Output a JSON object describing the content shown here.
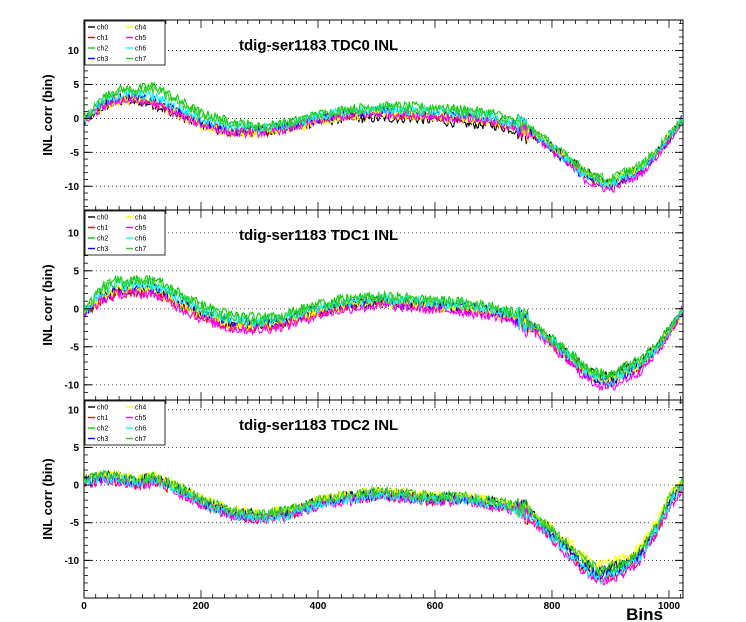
{
  "chart_data": {
    "type": "line",
    "xlabel": "Bins",
    "xlim": [
      0,
      1024
    ],
    "x_ticks": [
      "0",
      "200",
      "400",
      "600",
      "800",
      "1000"
    ],
    "series_colors": {
      "ch0": "#000000",
      "ch1": "#ff0000",
      "ch2": "#00cc00",
      "ch3": "#0000ff",
      "ch4": "#ffff00",
      "ch5": "#ff00ff",
      "ch6": "#00ffff",
      "ch7": "#33cc33"
    },
    "panels": [
      {
        "title": "tdig-ser1183 TDC0 INL",
        "ylabel": "INL corr (bin)",
        "ylim": [
          -13.5,
          14.5
        ],
        "y_ticks": [
          "-10",
          "-5",
          "0",
          "5",
          "10"
        ],
        "legend": [
          "ch0",
          "ch1",
          "ch2",
          "ch3",
          "ch4",
          "ch5",
          "ch6",
          "ch7"
        ],
        "x": [
          0,
          30,
          60,
          90,
          120,
          160,
          200,
          250,
          300,
          350,
          400,
          450,
          500,
          550,
          600,
          650,
          700,
          750,
          780,
          820,
          860,
          880,
          900,
          920,
          950,
          980,
          1000,
          1024
        ],
        "series": [
          {
            "name": "ch0",
            "values": [
              -0.5,
              1.5,
              2.5,
              2.5,
              2,
              0.5,
              -1,
              -2,
              -2,
              -1.5,
              -0.5,
              0,
              0,
              0,
              -0.3,
              -0.8,
              -1,
              -2,
              -3,
              -5.5,
              -8,
              -9,
              -9.5,
              -8.5,
              -7.5,
              -5,
              -3,
              0
            ]
          },
          {
            "name": "ch1",
            "values": [
              -0.5,
              1.8,
              2.8,
              2.8,
              2.3,
              0.8,
              -0.8,
              -2,
              -2,
              -1.4,
              -0.2,
              0.5,
              0.8,
              0.6,
              0.3,
              0,
              -0.5,
              -1.5,
              -3,
              -5.8,
              -8.5,
              -9.5,
              -10,
              -9,
              -7.8,
              -5.3,
              -3,
              0
            ]
          },
          {
            "name": "ch2",
            "values": [
              -0.3,
              3,
              4.2,
              4.3,
              4.8,
              2.8,
              0.8,
              -0.5,
              -1.2,
              -0.6,
              0.6,
              1.4,
              1.8,
              1.8,
              1.6,
              1.3,
              0.8,
              -0.8,
              -2.6,
              -5.3,
              -8,
              -8.8,
              -9.2,
              -8.2,
              -7.2,
              -4.8,
              -2.5,
              0
            ]
          },
          {
            "name": "ch3",
            "values": [
              -0.4,
              2,
              3,
              3,
              2.6,
              1,
              -0.6,
              -1.8,
              -1.9,
              -1.3,
              -0.1,
              0.6,
              0.9,
              0.8,
              0.5,
              0.2,
              -0.3,
              -1.4,
              -3,
              -6,
              -8.8,
              -9.6,
              -10,
              -9,
              -7.8,
              -5.2,
              -3,
              0
            ]
          },
          {
            "name": "ch4",
            "values": [
              -0.5,
              1.6,
              2.6,
              2.6,
              2.1,
              0.6,
              -1,
              -2.2,
              -2.2,
              -1.6,
              -0.4,
              0.3,
              0.6,
              0.5,
              0.2,
              -0.2,
              -0.6,
              -1.6,
              -3.1,
              -5.8,
              -8.3,
              -9.2,
              -9.6,
              -8.6,
              -7.5,
              -5,
              -2.8,
              0
            ]
          },
          {
            "name": "ch5",
            "values": [
              -0.6,
              1.7,
              2.7,
              2.6,
              2.1,
              0.6,
              -0.9,
              -2.1,
              -2.1,
              -1.5,
              -0.3,
              0.4,
              0.7,
              0.6,
              0.3,
              -0.1,
              -0.5,
              -1.6,
              -3.2,
              -6.2,
              -9.2,
              -10,
              -10.5,
              -9.5,
              -8.3,
              -5.5,
              -3.2,
              0
            ]
          },
          {
            "name": "ch6",
            "values": [
              -0.3,
              2.3,
              3.4,
              3.5,
              3.2,
              1.6,
              0,
              -1.2,
              -1.5,
              -0.9,
              0.3,
              1,
              1.3,
              1.2,
              1,
              0.6,
              0.1,
              -1.1,
              -2.8,
              -5.7,
              -8.6,
              -9.4,
              -9.8,
              -8.8,
              -7.6,
              -5.1,
              -2.8,
              0
            ]
          },
          {
            "name": "ch7",
            "values": [
              -0.2,
              2.7,
              3.9,
              4,
              4.3,
              2.4,
              0.6,
              -0.7,
              -1.3,
              -0.7,
              0.5,
              1.2,
              1.6,
              1.5,
              1.3,
              1,
              0.5,
              -0.9,
              -2.5,
              -5.2,
              -7.9,
              -8.6,
              -9,
              -8,
              -7,
              -4.7,
              -2.4,
              0
            ]
          }
        ]
      },
      {
        "title": "tdig-ser1183 TDC1 INL",
        "ylabel": "INL corr (bin)",
        "ylim": [
          -12,
          13
        ],
        "y_ticks": [
          "-10",
          "-5",
          "0",
          "5",
          "10"
        ],
        "legend": [
          "ch0",
          "ch1",
          "ch2",
          "ch3",
          "ch4",
          "ch5",
          "ch6",
          "ch7"
        ],
        "x": [
          0,
          30,
          60,
          90,
          120,
          160,
          200,
          250,
          300,
          350,
          400,
          450,
          500,
          550,
          600,
          650,
          700,
          750,
          780,
          820,
          860,
          880,
          900,
          920,
          950,
          980,
          1000,
          1024
        ],
        "series": [
          {
            "name": "ch0",
            "values": [
              -0.5,
              1.5,
              2.5,
              2.5,
              2.5,
              0.8,
              -0.8,
              -2,
              -2.2,
              -1.5,
              -0.3,
              0.5,
              1,
              0.8,
              0.5,
              0.2,
              -0.3,
              -1.5,
              -3,
              -5.5,
              -8,
              -8.8,
              -9,
              -8,
              -7,
              -5,
              -3,
              0
            ]
          },
          {
            "name": "ch1",
            "values": [
              -0.6,
              1.2,
              2.2,
              2.2,
              2.2,
              0.5,
              -1.1,
              -2.3,
              -2.5,
              -1.8,
              -0.5,
              0.3,
              0.7,
              0.5,
              0.2,
              -0.1,
              -0.6,
              -1.8,
              -3.3,
              -6,
              -8.5,
              -9.3,
              -9.8,
              -8.8,
              -7.6,
              -5.4,
              -3.2,
              0
            ]
          },
          {
            "name": "ch2",
            "values": [
              -0.2,
              2.8,
              3.8,
              3.8,
              3.9,
              2.2,
              0.5,
              -0.8,
              -1.2,
              -0.6,
              0.6,
              1.3,
              1.6,
              1.4,
              1.1,
              0.8,
              0.3,
              -1,
              -2.7,
              -5.2,
              -7.7,
              -8.4,
              -8.8,
              -7.8,
              -6.8,
              -4.7,
              -2.6,
              0
            ]
          },
          {
            "name": "ch3",
            "values": [
              -0.5,
              1.6,
              2.6,
              2.6,
              2.6,
              0.9,
              -0.7,
              -1.9,
              -2.1,
              -1.4,
              -0.2,
              0.5,
              0.9,
              0.7,
              0.4,
              0.1,
              -0.4,
              -1.6,
              -3.2,
              -6,
              -8.6,
              -9.4,
              -9.8,
              -8.8,
              -7.6,
              -5.3,
              -3.1,
              0
            ]
          },
          {
            "name": "ch4",
            "values": [
              -0.5,
              1.5,
              2.5,
              2.4,
              2.4,
              0.7,
              -0.9,
              -2.1,
              -2.3,
              -1.6,
              -0.4,
              0.4,
              0.8,
              0.6,
              0.3,
              0,
              -0.5,
              -1.7,
              -3.2,
              -5.8,
              -8.3,
              -9.1,
              -9.5,
              -8.5,
              -7.4,
              -5.2,
              -3,
              0
            ]
          },
          {
            "name": "ch5",
            "values": [
              -0.7,
              1.1,
              2,
              2,
              2,
              0.3,
              -1.3,
              -2.6,
              -2.8,
              -2.1,
              -0.8,
              0,
              0.4,
              0.2,
              -0.1,
              -0.4,
              -0.9,
              -2,
              -3.5,
              -6.4,
              -9.2,
              -10,
              -10.5,
              -9.5,
              -8.2,
              -5.8,
              -3.4,
              0
            ]
          },
          {
            "name": "ch6",
            "values": [
              -0.4,
              2.1,
              3.1,
              3.1,
              3.1,
              1.4,
              -0.2,
              -1.5,
              -1.8,
              -1.1,
              0.1,
              0.8,
              1.2,
              1,
              0.7,
              0.4,
              -0.1,
              -1.4,
              -3,
              -5.8,
              -8.4,
              -9.2,
              -9.6,
              -8.6,
              -7.4,
              -5.2,
              -3,
              0
            ]
          },
          {
            "name": "ch7",
            "values": [
              -0.3,
              2.5,
              3.5,
              3.5,
              3.6,
              1.9,
              0.2,
              -1.1,
              -1.5,
              -0.8,
              0.4,
              1.1,
              1.4,
              1.2,
              0.9,
              0.6,
              0.1,
              -1.2,
              -2.8,
              -5.4,
              -7.9,
              -8.6,
              -9,
              -8,
              -7,
              -4.9,
              -2.8,
              0
            ]
          }
        ]
      },
      {
        "title": "tdig-ser1183 TDC2 INL",
        "ylabel": "INL corr (bin)",
        "ylim": [
          -15,
          11.3
        ],
        "y_ticks": [
          "-10",
          "-5",
          "0",
          "5",
          "10"
        ],
        "legend": [
          "ch0",
          "ch1",
          "ch2",
          "ch3",
          "ch4",
          "ch5",
          "ch6",
          "ch7"
        ],
        "x": [
          0,
          30,
          60,
          90,
          120,
          160,
          200,
          250,
          300,
          350,
          400,
          450,
          500,
          550,
          600,
          650,
          700,
          750,
          780,
          820,
          860,
          880,
          900,
          920,
          950,
          980,
          1000,
          1024
        ],
        "series": [
          {
            "name": "ch0",
            "values": [
              0.5,
              1.2,
              1,
              0.5,
              1,
              -0.3,
              -2,
              -3.5,
              -4,
              -3.5,
              -2.2,
              -1.5,
              -1,
              -1.3,
              -1.7,
              -1.6,
              -2.3,
              -3,
              -4.8,
              -7.5,
              -10.5,
              -11.5,
              -11,
              -10.5,
              -9,
              -5,
              -2,
              0.5
            ]
          },
          {
            "name": "ch1",
            "values": [
              0.2,
              0.8,
              0.5,
              0,
              0.5,
              -0.8,
              -2.5,
              -4,
              -4.5,
              -4,
              -2.6,
              -2,
              -1.4,
              -1.7,
              -2.1,
              -2,
              -2.7,
              -3.5,
              -5.5,
              -8.5,
              -11.5,
              -12.5,
              -12,
              -11.5,
              -10,
              -6,
              -2.8,
              0
            ]
          },
          {
            "name": "ch2",
            "values": [
              0.6,
              1.3,
              1.1,
              0.6,
              1.1,
              -0.2,
              -1.9,
              -3.4,
              -3.9,
              -3.4,
              -2.1,
              -1.4,
              -0.9,
              -1.2,
              -1.6,
              -1.5,
              -2.2,
              -2.9,
              -4.7,
              -7.6,
              -10.6,
              -11.6,
              -11.2,
              -10.7,
              -9.2,
              -5.2,
              -2.1,
              0.4
            ]
          },
          {
            "name": "ch3",
            "values": [
              0.4,
              1,
              0.8,
              0.3,
              0.8,
              -0.5,
              -2.2,
              -3.7,
              -4.2,
              -3.7,
              -2.4,
              -1.7,
              -1.2,
              -1.5,
              -1.9,
              -1.8,
              -2.5,
              -3.2,
              -5,
              -8,
              -11,
              -12,
              -11.6,
              -11,
              -9.5,
              -5.5,
              -2.4,
              0.2
            ]
          },
          {
            "name": "ch4",
            "values": [
              0.7,
              1.4,
              1.2,
              0.7,
              1.2,
              -0.1,
              -1.8,
              -3.3,
              -3.8,
              -3.3,
              -2,
              -1.3,
              -0.8,
              -1.1,
              -1.5,
              -1.4,
              -2.1,
              -2.8,
              -4.5,
              -7,
              -9.8,
              -10.6,
              -10.2,
              -9.8,
              -8.3,
              -4.4,
              -1.6,
              0.8
            ]
          },
          {
            "name": "ch5",
            "values": [
              0.1,
              0.7,
              0.4,
              -0.1,
              0.4,
              -0.9,
              -2.6,
              -4.1,
              -4.6,
              -4.1,
              -2.7,
              -2.1,
              -1.5,
              -1.8,
              -2.2,
              -2.1,
              -2.8,
              -3.6,
              -5.6,
              -8.8,
              -11.8,
              -12.8,
              -12.4,
              -11.8,
              -10.2,
              -6.2,
              -3,
              -0.2
            ]
          },
          {
            "name": "ch6",
            "values": [
              0.3,
              0.9,
              0.7,
              0.2,
              0.7,
              -0.6,
              -2.3,
              -3.9,
              -4.6,
              -4,
              -2.6,
              -1.9,
              -1.3,
              -1.7,
              -2,
              -1.9,
              -2.6,
              -3.4,
              -5.3,
              -8.4,
              -11.4,
              -12.4,
              -12,
              -11.4,
              -9.8,
              -5.8,
              -2.6,
              0
            ]
          },
          {
            "name": "ch7",
            "values": [
              0.6,
              1.3,
              1.1,
              0.6,
              1.1,
              -0.2,
              -1.9,
              -3.4,
              -3.9,
              -3.4,
              -2.1,
              -1.4,
              -0.9,
              -1.2,
              -1.6,
              -1.5,
              -2.2,
              -2.9,
              -4.6,
              -7.4,
              -10.3,
              -11.3,
              -10.9,
              -10.4,
              -8.9,
              -5,
              -1.9,
              0.5
            ]
          }
        ]
      }
    ]
  }
}
